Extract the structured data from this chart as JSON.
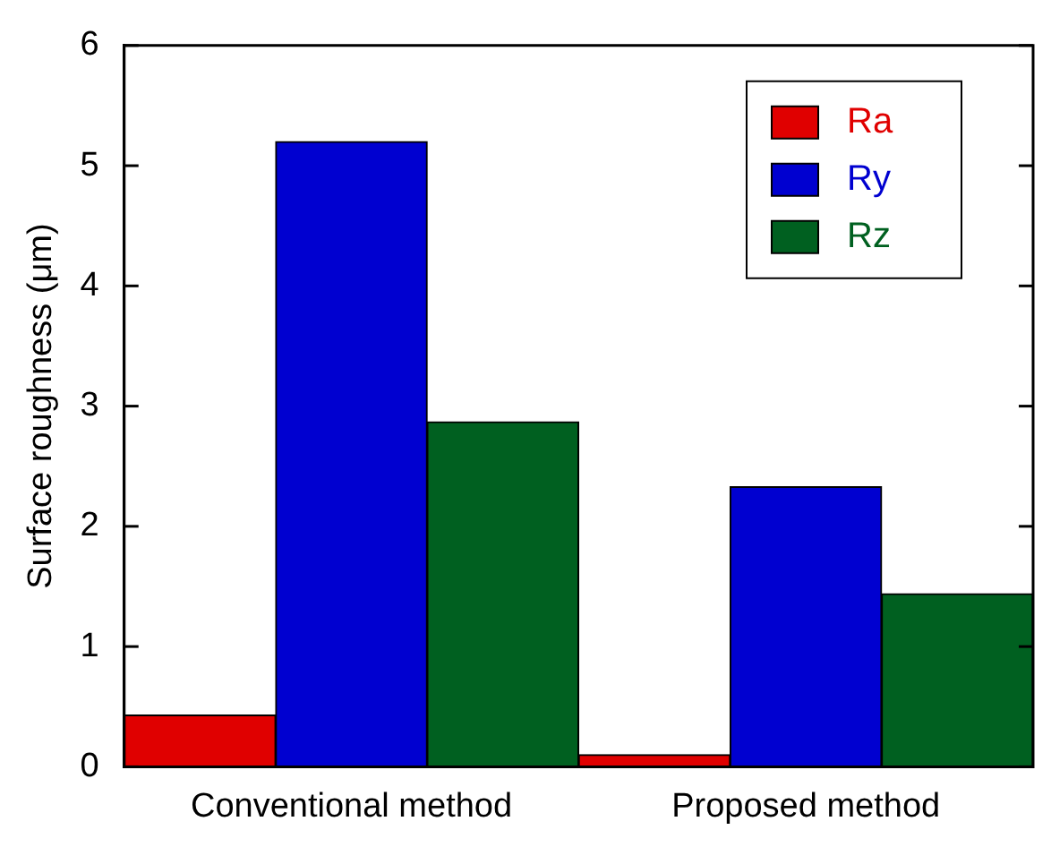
{
  "chart_data": {
    "type": "bar",
    "ylabel": "Surface roughness (μm)",
    "categories": [
      "Conventional method",
      "Proposed method"
    ],
    "series": [
      {
        "name": "Ra",
        "color": "#e00000",
        "values": [
          0.43,
          0.1
        ]
      },
      {
        "name": "Ry",
        "color": "#0000d0",
        "values": [
          5.2,
          2.33
        ]
      },
      {
        "name": "Rz",
        "color": "#006020",
        "values": [
          2.87,
          1.44
        ]
      }
    ],
    "ylim": [
      0,
      6
    ],
    "yticks": [
      0,
      1,
      2,
      3,
      4,
      5,
      6
    ],
    "grid": false,
    "legend": "top right"
  }
}
